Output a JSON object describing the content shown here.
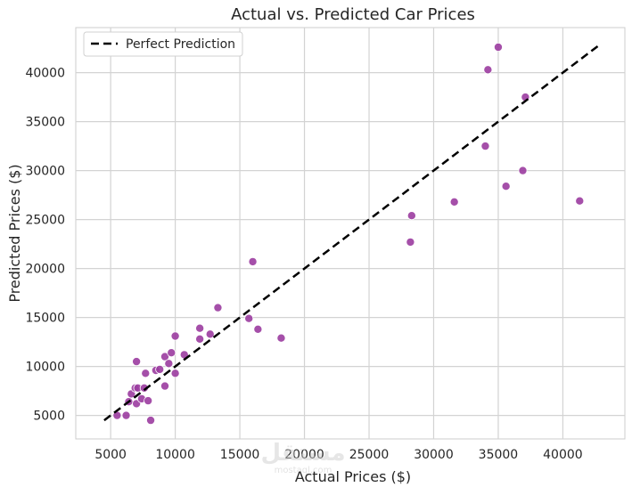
{
  "chart_data": {
    "type": "scatter",
    "title": "Actual vs. Predicted Car Prices",
    "xlabel": "Actual Prices ($)",
    "ylabel": "Predicted Prices ($)",
    "xlim": [
      2300,
      44800
    ],
    "ylim": [
      2600,
      44600
    ],
    "xticks": [
      5000,
      10000,
      15000,
      20000,
      25000,
      30000,
      35000,
      40000
    ],
    "yticks": [
      5000,
      10000,
      15000,
      20000,
      25000,
      30000,
      35000,
      40000
    ],
    "grid": true,
    "legend": {
      "position": "top-left",
      "entries": [
        "Perfect Prediction"
      ]
    },
    "reference_line": {
      "name": "Perfect Prediction",
      "from": [
        4500,
        4500
      ],
      "to": [
        42700,
        42700
      ],
      "color": "#000000",
      "style": "dashed"
    },
    "series": [
      {
        "color": "#9b3ca0",
        "points": [
          [
            5500,
            5000
          ],
          [
            6200,
            5000
          ],
          [
            6400,
            6400
          ],
          [
            6600,
            7200
          ],
          [
            6900,
            7800
          ],
          [
            7000,
            6200
          ],
          [
            7000,
            10500
          ],
          [
            7100,
            7800
          ],
          [
            7400,
            6700
          ],
          [
            7600,
            7800
          ],
          [
            7700,
            9300
          ],
          [
            7900,
            6500
          ],
          [
            8100,
            4500
          ],
          [
            8500,
            9600
          ],
          [
            8800,
            9700
          ],
          [
            9200,
            8000
          ],
          [
            9200,
            11000
          ],
          [
            9500,
            10300
          ],
          [
            9700,
            11400
          ],
          [
            10000,
            9300
          ],
          [
            10000,
            13100
          ],
          [
            10700,
            11200
          ],
          [
            11900,
            12800
          ],
          [
            11900,
            13900
          ],
          [
            12700,
            13300
          ],
          [
            13300,
            16000
          ],
          [
            15700,
            14900
          ],
          [
            16000,
            20700
          ],
          [
            16400,
            13800
          ],
          [
            18200,
            12900
          ],
          [
            28200,
            22700
          ],
          [
            28300,
            25400
          ],
          [
            31600,
            26800
          ],
          [
            34000,
            32500
          ],
          [
            34200,
            40300
          ],
          [
            35000,
            42600
          ],
          [
            35600,
            28400
          ],
          [
            36900,
            30000
          ],
          [
            37100,
            37500
          ],
          [
            41300,
            26900
          ]
        ]
      }
    ]
  },
  "watermark": {
    "text": "مستقل",
    "sub": "mostaql.com"
  }
}
